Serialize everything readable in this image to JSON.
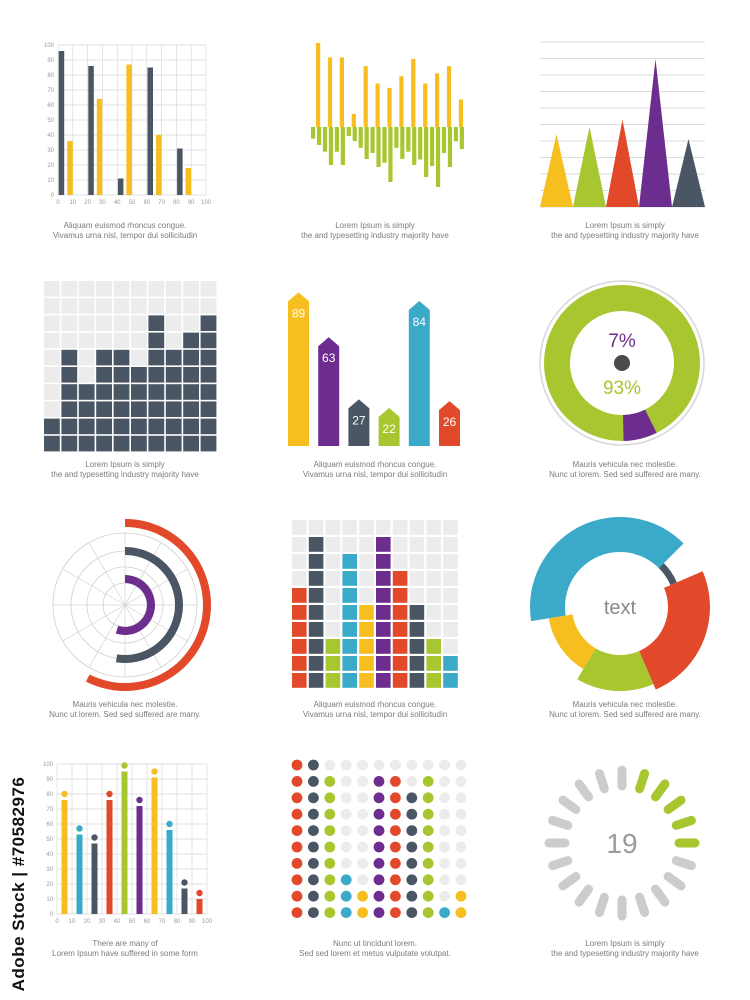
{
  "colors": {
    "yellow": "#f6be1f",
    "green": "#a7c62f",
    "purple": "#6d2d8e",
    "red": "#e2492a",
    "navy": "#4a5663",
    "blue": "#3ba9c8",
    "grid_bg": "#ececec",
    "light_grey": "#d8d8d8"
  },
  "captions": {
    "c1": [
      "Aliquam euismod rhoncus congue.",
      "Vivamus urna nisl,  tempor dui sollicitudin"
    ],
    "c2": [
      "Lorem Ipsum is simply",
      "the  and typesetting industry majority have"
    ],
    "c3": [
      "Lorem Ipsum is simply",
      "the  and typesetting industry majority have"
    ],
    "c4": [
      "Lorem Ipsum is simply",
      "the  and typesetting industry majority have"
    ],
    "c5": [
      "Aliquam euismod rhoncus congue.",
      "Vivamus urna nisl,   tempor dui sollicitudin"
    ],
    "c6": [
      "Mauris vehicula nec molestie.",
      "Nunc ut  lorem. Sed sed  suffered  are many."
    ],
    "c7": [
      "Mauris vehicula nec molestie.",
      "Nunc ut  lorem. Sed sed  suffered  are many."
    ],
    "c8": [
      "Aliquam euismod rhoncus congue.",
      "Vivamus urna nisl,   tempor dui sollicitudin"
    ],
    "c9": [
      "Mauris vehicula nec molestie.",
      "Nunc ut  lorem. Sed sed  suffered  are many."
    ],
    "c10": [
      "There are many  of",
      "Lorem Ipsum  have suffered  in some form"
    ],
    "c11": [
      "Nunc ut tincidunt lorem.",
      "Sed sed lorem et metus vulputate volutpat."
    ],
    "c12": [
      "Lorem Ipsum is simply",
      "the  and typesetting industry majority have"
    ]
  },
  "stock_text": "Adobe Stock | #70582976",
  "chart_data": [
    {
      "id": "c1",
      "type": "bar",
      "x_ticks": [
        0,
        10,
        20,
        30,
        40,
        50,
        60,
        70,
        80,
        90,
        100
      ],
      "y_ticks": [
        0,
        10,
        20,
        30,
        40,
        50,
        60,
        70,
        80,
        90,
        100
      ],
      "ylim": [
        0,
        100
      ],
      "series": [
        {
          "color": "navy",
          "values": [
            96,
            86,
            11,
            85,
            31
          ]
        },
        {
          "color": "yellow",
          "values": [
            36,
            64,
            87,
            40,
            18
          ]
        }
      ]
    },
    {
      "id": "c2",
      "type": "bar",
      "series": [
        {
          "color": "yellow",
          "values": [
            58,
            48,
            48,
            9,
            42,
            30,
            27,
            35,
            47,
            30,
            37,
            42,
            19
          ]
        },
        {
          "color": "green",
          "values": [
            -18,
            -38,
            -38,
            -14,
            -32,
            -40,
            -55,
            -32,
            -38,
            -50,
            -60,
            -40,
            -22
          ]
        }
      ]
    },
    {
      "id": "c3",
      "type": "area",
      "values": [
        {
          "color": "yellow",
          "value": 30
        },
        {
          "color": "green",
          "value": 33
        },
        {
          "color": "red",
          "value": 36
        },
        {
          "color": "purple",
          "value": 61
        },
        {
          "color": "navy",
          "value": 28
        }
      ],
      "ylim": [
        0,
        68
      ]
    },
    {
      "id": "c4",
      "type": "bar",
      "values": [
        2,
        6,
        4,
        6,
        6,
        5,
        8,
        6,
        7,
        8
      ],
      "max": 10
    },
    {
      "id": "c5",
      "type": "bar",
      "values": [
        {
          "value": 89,
          "color": "yellow",
          "label": "89"
        },
        {
          "value": 63,
          "color": "purple",
          "label": "63"
        },
        {
          "value": 27,
          "color": "navy",
          "label": "27"
        },
        {
          "value": 22,
          "color": "green",
          "label": "22"
        },
        {
          "value": 84,
          "color": "blue",
          "label": "84"
        },
        {
          "value": 26,
          "color": "red",
          "label": "26"
        }
      ]
    },
    {
      "id": "c6",
      "type": "pie",
      "slices": [
        {
          "value": 93,
          "color": "green",
          "label": "93%"
        },
        {
          "value": 7,
          "color": "purple",
          "label": "7%"
        }
      ]
    },
    {
      "id": "c7",
      "type": "pie",
      "rings": [
        {
          "color": "red",
          "fraction": 0.54
        },
        {
          "color": "navy",
          "fraction": 0.5
        },
        {
          "color": "purple",
          "fraction": 0.5
        }
      ]
    },
    {
      "id": "c8",
      "type": "bar",
      "values": [
        {
          "value": 6,
          "color": "red"
        },
        {
          "value": 9,
          "color": "navy"
        },
        {
          "value": 3,
          "color": "green"
        },
        {
          "value": 8,
          "color": "blue"
        },
        {
          "value": 5,
          "color": "yellow"
        },
        {
          "value": 9,
          "color": "purple"
        },
        {
          "value": 7,
          "color": "red"
        },
        {
          "value": 5,
          "color": "navy"
        },
        {
          "value": 3,
          "color": "green"
        },
        {
          "value": 2,
          "color": "blue"
        }
      ],
      "max": 10
    },
    {
      "id": "c9",
      "type": "pie",
      "center_label": "text",
      "slices": [
        {
          "value": 40,
          "color": "blue"
        },
        {
          "value": 6,
          "color": "navy"
        },
        {
          "value": 25,
          "color": "red"
        },
        {
          "value": 15,
          "color": "green"
        },
        {
          "value": 14,
          "color": "yellow"
        }
      ]
    },
    {
      "id": "c10",
      "type": "bar",
      "x_ticks": [
        0,
        10,
        20,
        30,
        40,
        50,
        60,
        70,
        80,
        90,
        100
      ],
      "y_ticks": [
        0,
        10,
        20,
        30,
        40,
        50,
        60,
        70,
        80,
        90,
        100
      ],
      "ylim": [
        0,
        100
      ],
      "values": [
        {
          "value": 80,
          "color": "yellow"
        },
        {
          "value": 57,
          "color": "blue"
        },
        {
          "value": 51,
          "color": "navy"
        },
        {
          "value": 80,
          "color": "red"
        },
        {
          "value": 99,
          "color": "green"
        },
        {
          "value": 76,
          "color": "purple"
        },
        {
          "value": 95,
          "color": "yellow"
        },
        {
          "value": 60,
          "color": "blue"
        },
        {
          "value": 21,
          "color": "navy"
        },
        {
          "value": 14,
          "color": "red"
        }
      ]
    },
    {
      "id": "c11",
      "type": "scatter",
      "values": [
        {
          "value": 10,
          "color": "red"
        },
        {
          "value": 10,
          "color": "navy"
        },
        {
          "value": 9,
          "color": "green"
        },
        {
          "value": 3,
          "color": "blue"
        },
        {
          "value": 2,
          "color": "yellow"
        },
        {
          "value": 9,
          "color": "purple"
        },
        {
          "value": 9,
          "color": "red"
        },
        {
          "value": 8,
          "color": "navy"
        },
        {
          "value": 9,
          "color": "green"
        },
        {
          "value": 1,
          "color": "blue"
        },
        {
          "value": 2,
          "color": "yellow"
        }
      ],
      "max": 10
    },
    {
      "id": "c12",
      "type": "pie",
      "center_label": "19",
      "segments_total": 20,
      "highlighted": [
        1,
        2,
        3,
        4,
        5
      ]
    }
  ]
}
